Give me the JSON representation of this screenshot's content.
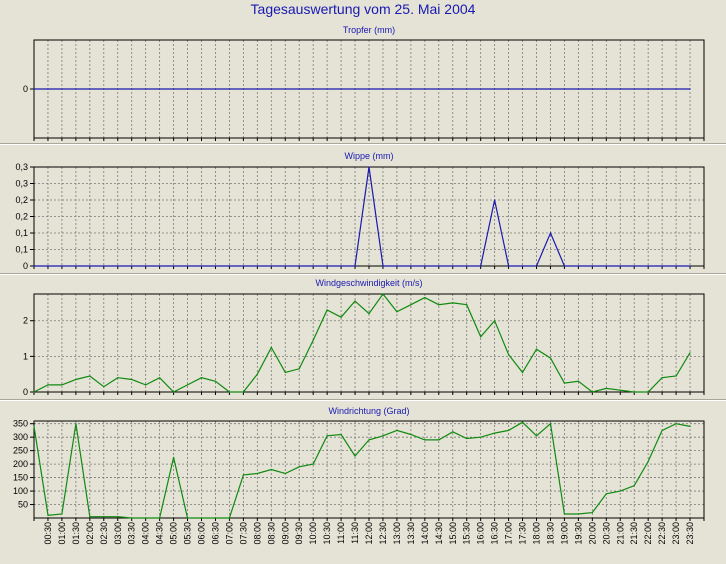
{
  "title": "Tagesauswertung vom 25. Mai 2004",
  "colors": {
    "background": "#e4e3d5",
    "title": "#1818b4",
    "blue_series": "#1a1ab0",
    "green_series": "#108a10",
    "grid": "#7a7a7a"
  },
  "x_ticks": [
    "00:30",
    "01:00",
    "01:30",
    "02:00",
    "02:30",
    "03:00",
    "03:30",
    "04:00",
    "04:30",
    "05:00",
    "05:30",
    "06:00",
    "06:30",
    "07:00",
    "07:30",
    "08:00",
    "08:30",
    "09:00",
    "09:30",
    "10:00",
    "10:30",
    "11:00",
    "11:30",
    "12:00",
    "12:30",
    "13:00",
    "13:30",
    "14:00",
    "14:30",
    "15:00",
    "15:30",
    "16:00",
    "16:30",
    "17:00",
    "17:30",
    "18:00",
    "18:30",
    "19:00",
    "19:30",
    "20:00",
    "20:30",
    "21:00",
    "21:30",
    "22:00",
    "22:30",
    "23:00",
    "23:30"
  ],
  "chart_data": [
    {
      "type": "line",
      "title": "Tropfer (mm)",
      "color": "blue_series",
      "x": [
        "00:00",
        "00:30",
        "01:00",
        "01:30",
        "02:00",
        "02:30",
        "03:00",
        "03:30",
        "04:00",
        "04:30",
        "05:00",
        "05:30",
        "06:00",
        "06:30",
        "07:00",
        "07:30",
        "08:00",
        "08:30",
        "09:00",
        "09:30",
        "10:00",
        "10:30",
        "11:00",
        "11:30",
        "12:00",
        "12:30",
        "13:00",
        "13:30",
        "14:00",
        "14:30",
        "15:00",
        "15:30",
        "16:00",
        "16:30",
        "17:00",
        "17:30",
        "18:00",
        "18:30",
        "19:00",
        "19:30",
        "20:00",
        "20:30",
        "21:00",
        "21:30",
        "22:00",
        "22:30",
        "23:00",
        "23:30"
      ],
      "values": [
        0,
        0,
        0,
        0,
        0,
        0,
        0,
        0,
        0,
        0,
        0,
        0,
        0,
        0,
        0,
        0,
        0,
        0,
        0,
        0,
        0,
        0,
        0,
        0,
        0,
        0,
        0,
        0,
        0,
        0,
        0,
        0,
        0,
        0,
        0,
        0,
        0,
        0,
        0,
        0,
        0,
        0,
        0,
        0,
        0,
        0,
        0,
        0
      ],
      "ylim": [
        -1,
        1
      ],
      "yticks": [
        "0"
      ],
      "grid": true
    },
    {
      "type": "line",
      "title": "Wippe (mm)",
      "color": "blue_series",
      "x": [
        "00:00",
        "00:30",
        "01:00",
        "01:30",
        "02:00",
        "02:30",
        "03:00",
        "03:30",
        "04:00",
        "04:30",
        "05:00",
        "05:30",
        "06:00",
        "06:30",
        "07:00",
        "07:30",
        "08:00",
        "08:30",
        "09:00",
        "09:30",
        "10:00",
        "10:30",
        "11:00",
        "11:30",
        "12:00",
        "12:30",
        "13:00",
        "13:30",
        "14:00",
        "14:30",
        "15:00",
        "15:30",
        "16:00",
        "16:30",
        "17:00",
        "17:30",
        "18:00",
        "18:30",
        "19:00",
        "19:30",
        "20:00",
        "20:30",
        "21:00",
        "21:30",
        "22:00",
        "22:30",
        "23:00",
        "23:30"
      ],
      "values": [
        0,
        0,
        0,
        0,
        0,
        0,
        0,
        0,
        0,
        0,
        0,
        0,
        0,
        0,
        0,
        0,
        0,
        0,
        0,
        0,
        0,
        0,
        0,
        0,
        0.36,
        0,
        0,
        0,
        0,
        0,
        0,
        0,
        0,
        0.24,
        0,
        0,
        0,
        0.12,
        0,
        0,
        0,
        0,
        0,
        0,
        0,
        0,
        0,
        0
      ],
      "ylim": [
        0,
        0.36
      ],
      "yticks": [
        "0",
        "0,1",
        "0,1",
        "0,2",
        "0,2",
        "0,3",
        "0,3"
      ],
      "grid": true
    },
    {
      "type": "line",
      "title": "Windgeschwindigkeit (m/s)",
      "color": "green_series",
      "x": [
        "00:00",
        "00:30",
        "01:00",
        "01:30",
        "02:00",
        "02:30",
        "03:00",
        "03:30",
        "04:00",
        "04:30",
        "05:00",
        "05:30",
        "06:00",
        "06:30",
        "07:00",
        "07:30",
        "08:00",
        "08:30",
        "09:00",
        "09:30",
        "10:00",
        "10:30",
        "11:00",
        "11:30",
        "12:00",
        "12:30",
        "13:00",
        "13:30",
        "14:00",
        "14:30",
        "15:00",
        "15:30",
        "16:00",
        "16:30",
        "17:00",
        "17:30",
        "18:00",
        "18:30",
        "19:00",
        "19:30",
        "20:00",
        "20:30",
        "21:00",
        "21:30",
        "22:00",
        "22:30",
        "23:00",
        "23:30"
      ],
      "values": [
        0,
        0.2,
        0.2,
        0.35,
        0.45,
        0.15,
        0.4,
        0.35,
        0.2,
        0.4,
        0,
        0.2,
        0.4,
        0.3,
        0,
        0,
        0.5,
        1.25,
        0.55,
        0.65,
        1.45,
        2.3,
        2.1,
        2.55,
        2.2,
        2.75,
        2.25,
        2.45,
        2.65,
        2.45,
        2.5,
        2.45,
        1.55,
        2.0,
        1.05,
        0.55,
        1.2,
        0.95,
        0.25,
        0.3,
        0,
        0.1,
        0.05,
        0,
        0,
        0.4,
        0.45,
        1.1
      ],
      "ylim": [
        0,
        2.75
      ],
      "yticks": [
        "0",
        "1",
        "2"
      ],
      "grid": true
    },
    {
      "type": "line",
      "title": "Windrichtung (Grad)",
      "color": "green_series",
      "x": [
        "00:00",
        "00:30",
        "01:00",
        "01:30",
        "02:00",
        "02:30",
        "03:00",
        "03:30",
        "04:00",
        "04:30",
        "05:00",
        "05:30",
        "06:00",
        "06:30",
        "07:00",
        "07:30",
        "08:00",
        "08:30",
        "09:00",
        "09:30",
        "10:00",
        "10:30",
        "11:00",
        "11:30",
        "12:00",
        "12:30",
        "13:00",
        "13:30",
        "14:00",
        "14:30",
        "15:00",
        "15:30",
        "16:00",
        "16:30",
        "17:00",
        "17:30",
        "18:00",
        "18:30",
        "19:00",
        "19:30",
        "20:00",
        "20:30",
        "21:00",
        "21:30",
        "22:00",
        "22:30",
        "23:00",
        "23:30"
      ],
      "values": [
        340,
        10,
        15,
        350,
        5,
        5,
        5,
        0,
        0,
        0,
        225,
        0,
        0,
        0,
        0,
        160,
        165,
        180,
        165,
        190,
        200,
        305,
        310,
        230,
        290,
        305,
        325,
        310,
        290,
        290,
        320,
        295,
        300,
        315,
        325,
        355,
        305,
        350,
        15,
        15,
        20,
        90,
        100,
        120,
        210,
        325,
        350,
        340
      ],
      "ylim": [
        0,
        360
      ],
      "yticks": [
        "50",
        "100",
        "150",
        "200",
        "250",
        "300",
        "350"
      ],
      "grid": true
    }
  ]
}
